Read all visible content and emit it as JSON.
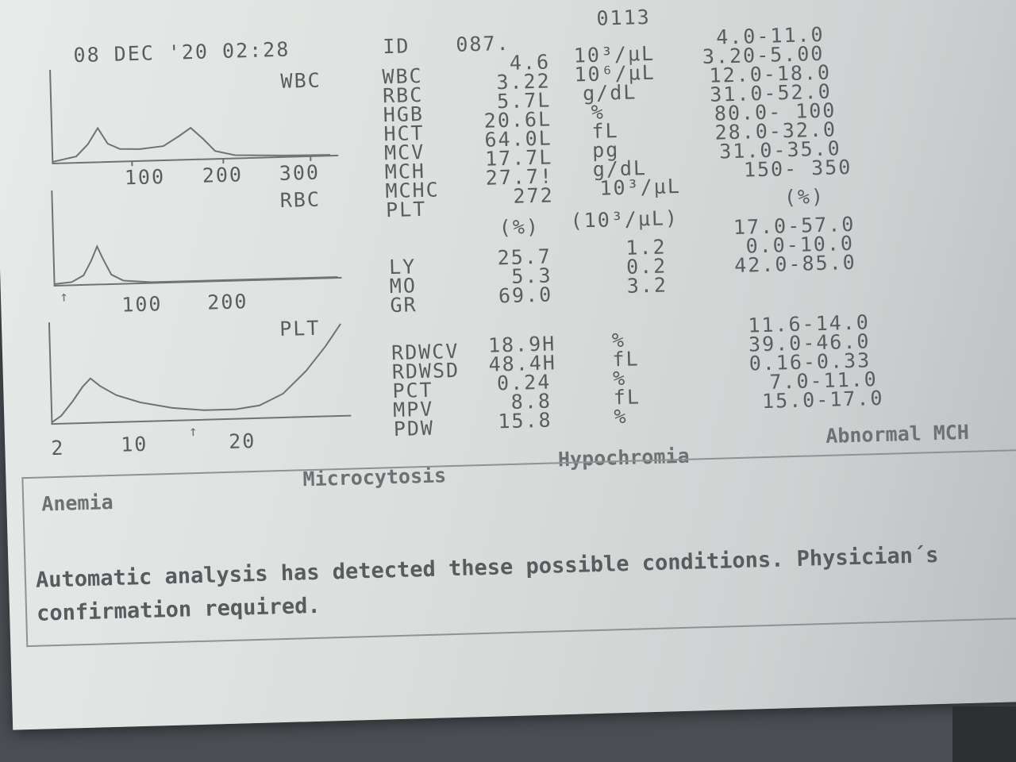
{
  "header": {
    "date_time": "08 DEC '20 02:28",
    "id_label": "ID",
    "id_value": "087.",
    "sample_no": "0113"
  },
  "histograms": {
    "wbc": {
      "title": "WBC",
      "ticks": [
        "100",
        "200",
        "300"
      ]
    },
    "rbc": {
      "title": "RBC",
      "ticks": [
        "100",
        "200"
      ]
    },
    "plt": {
      "title": "PLT",
      "ticks": [
        "2",
        "10",
        "20"
      ]
    }
  },
  "cbc": [
    {
      "name": "WBC",
      "value": "4.6",
      "unit": "10³/µL",
      "range": "4.0-11.0"
    },
    {
      "name": "RBC",
      "value": "3.22",
      "unit": "10⁶/µL",
      "range": "3.20-5.00"
    },
    {
      "name": "HGB",
      "value": "5.7L",
      "unit": "g/dL",
      "range": "12.0-18.0"
    },
    {
      "name": "HCT",
      "value": "20.6L",
      "unit": "%",
      "range": "31.0-52.0"
    },
    {
      "name": "MCV",
      "value": "64.0L",
      "unit": "fL",
      "range": "80.0- 100"
    },
    {
      "name": "MCH",
      "value": "17.7L",
      "unit": "pg",
      "range": "28.0-32.0"
    },
    {
      "name": "MCHC",
      "value": "27.7!",
      "unit": "g/dL",
      "range": "31.0-35.0"
    },
    {
      "name": "PLT",
      "value": "272",
      "unit": "10³/µL",
      "range": "150- 350"
    }
  ],
  "diff_headers": {
    "pct": "(%)",
    "abs": "(10³/µL)",
    "range": "(%)"
  },
  "diff": [
    {
      "name": "LY",
      "pct": "25.7",
      "abs": "1.2",
      "range": "17.0-57.0"
    },
    {
      "name": "MO",
      "pct": "5.3",
      "abs": "0.2",
      "range": "0.0-10.0"
    },
    {
      "name": "GR",
      "pct": "69.0",
      "abs": "3.2",
      "range": "42.0-85.0"
    }
  ],
  "indices": [
    {
      "name": "RDWCV",
      "value": "18.9H",
      "unit": "%",
      "range": "11.6-14.0"
    },
    {
      "name": "RDWSD",
      "value": "48.4H",
      "unit": "fL",
      "range": "39.0-46.0"
    },
    {
      "name": "PCT",
      "value": "0.24",
      "unit": "%",
      "range": "0.16-0.33"
    },
    {
      "name": "MPV",
      "value": "8.8",
      "unit": "fL",
      "range": "7.0-11.0"
    },
    {
      "name": "PDW",
      "value": "15.8",
      "unit": "%",
      "range": "15.0-17.0"
    }
  ],
  "conditions": [
    "Anemia",
    "Microcytosis",
    "Hypochromia",
    "Abnormal MCH"
  ],
  "message": "Automatic analysis has detected these possible conditions. Physician´s confirmation required."
}
